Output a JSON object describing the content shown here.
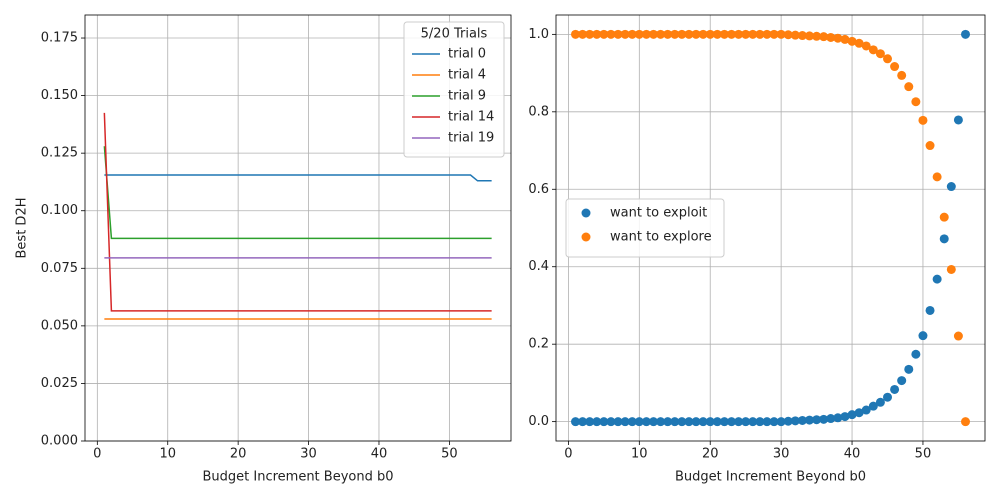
{
  "chart_data": [
    {
      "type": "line",
      "y_label": "Best D2H",
      "x_label": "Budget Increment Beyond b0",
      "legend_title": "5/20 Trials",
      "legend": "upper right",
      "grid": true,
      "x": [
        1,
        2,
        3,
        4,
        5,
        6,
        7,
        8,
        9,
        10,
        11,
        12,
        13,
        14,
        15,
        16,
        17,
        18,
        19,
        20,
        21,
        22,
        23,
        24,
        25,
        26,
        27,
        28,
        29,
        30,
        31,
        32,
        33,
        34,
        35,
        36,
        37,
        38,
        39,
        40,
        41,
        42,
        43,
        44,
        45,
        46,
        47,
        48,
        49,
        50,
        51,
        52,
        53,
        54,
        55,
        56
      ],
      "xlim": [
        -1.75,
        58.75
      ],
      "xticks": [
        0,
        10,
        20,
        30,
        40,
        50
      ],
      "ylim": [
        0,
        0.185
      ],
      "yticks": [
        {
          "value": 0,
          "label": "0.000"
        },
        {
          "value": 0.025,
          "label": "0.025"
        },
        {
          "value": 0.05,
          "label": "0.050"
        },
        {
          "value": 0.075,
          "label": "0.075"
        },
        {
          "value": 0.1,
          "label": "0.100"
        },
        {
          "value": 0.125,
          "label": "0.125"
        },
        {
          "value": 0.15,
          "label": "0.150"
        },
        {
          "value": 0.175,
          "label": "0.175"
        }
      ],
      "series": [
        {
          "name": "trial 0",
          "color": "#1f77b4",
          "values": [
            0.1155,
            0.1155,
            0.1155,
            0.1155,
            0.1155,
            0.1155,
            0.1155,
            0.1155,
            0.1155,
            0.1155,
            0.1155,
            0.1155,
            0.1155,
            0.1155,
            0.1155,
            0.1155,
            0.1155,
            0.1155,
            0.1155,
            0.1155,
            0.1155,
            0.1155,
            0.1155,
            0.1155,
            0.1155,
            0.1155,
            0.1155,
            0.1155,
            0.1155,
            0.1155,
            0.1155,
            0.1155,
            0.1155,
            0.1155,
            0.1155,
            0.1155,
            0.1155,
            0.1155,
            0.1155,
            0.1155,
            0.1155,
            0.1155,
            0.1155,
            0.1155,
            0.1155,
            0.1155,
            0.1155,
            0.1155,
            0.1155,
            0.1155,
            0.1155,
            0.1155,
            0.1155,
            0.113,
            0.113,
            0.113
          ]
        },
        {
          "name": "trial 4",
          "color": "#ff7f0e",
          "values": [
            0.053,
            0.053,
            0.053,
            0.053,
            0.053,
            0.053,
            0.053,
            0.053,
            0.053,
            0.053,
            0.053,
            0.053,
            0.053,
            0.053,
            0.053,
            0.053,
            0.053,
            0.053,
            0.053,
            0.053,
            0.053,
            0.053,
            0.053,
            0.053,
            0.053,
            0.053,
            0.053,
            0.053,
            0.053,
            0.053,
            0.053,
            0.053,
            0.053,
            0.053,
            0.053,
            0.053,
            0.053,
            0.053,
            0.053,
            0.053,
            0.053,
            0.053,
            0.053,
            0.053,
            0.053,
            0.053,
            0.053,
            0.053,
            0.053,
            0.053,
            0.053,
            0.053,
            0.053,
            0.053,
            0.053,
            0.053
          ]
        },
        {
          "name": "trial 9",
          "color": "#2ca02c",
          "values": [
            0.128,
            0.088,
            0.088,
            0.088,
            0.088,
            0.088,
            0.088,
            0.088,
            0.088,
            0.088,
            0.088,
            0.088,
            0.088,
            0.088,
            0.088,
            0.088,
            0.088,
            0.088,
            0.088,
            0.088,
            0.088,
            0.088,
            0.088,
            0.088,
            0.088,
            0.088,
            0.088,
            0.088,
            0.088,
            0.088,
            0.088,
            0.088,
            0.088,
            0.088,
            0.088,
            0.088,
            0.088,
            0.088,
            0.088,
            0.088,
            0.088,
            0.088,
            0.088,
            0.088,
            0.088,
            0.088,
            0.088,
            0.088,
            0.088,
            0.088,
            0.088,
            0.088,
            0.088,
            0.088,
            0.088,
            0.088
          ]
        },
        {
          "name": "trial 14",
          "color": "#d62728",
          "values": [
            0.1425,
            0.0565,
            0.0565,
            0.0565,
            0.0565,
            0.0565,
            0.0565,
            0.0565,
            0.0565,
            0.0565,
            0.0565,
            0.0565,
            0.0565,
            0.0565,
            0.0565,
            0.0565,
            0.0565,
            0.0565,
            0.0565,
            0.0565,
            0.0565,
            0.0565,
            0.0565,
            0.0565,
            0.0565,
            0.0565,
            0.0565,
            0.0565,
            0.0565,
            0.0565,
            0.0565,
            0.0565,
            0.0565,
            0.0565,
            0.0565,
            0.0565,
            0.0565,
            0.0565,
            0.0565,
            0.0565,
            0.0565,
            0.0565,
            0.0565,
            0.0565,
            0.0565,
            0.0565,
            0.0565,
            0.0565,
            0.0565,
            0.0565,
            0.0565,
            0.0565,
            0.0565,
            0.0565,
            0.0565,
            0.0565
          ]
        },
        {
          "name": "trial 19",
          "color": "#9467bd",
          "values": [
            0.0795,
            0.0795,
            0.0795,
            0.0795,
            0.0795,
            0.0795,
            0.0795,
            0.0795,
            0.0795,
            0.0795,
            0.0795,
            0.0795,
            0.0795,
            0.0795,
            0.0795,
            0.0795,
            0.0795,
            0.0795,
            0.0795,
            0.0795,
            0.0795,
            0.0795,
            0.0795,
            0.0795,
            0.0795,
            0.0795,
            0.0795,
            0.0795,
            0.0795,
            0.0795,
            0.0795,
            0.0795,
            0.0795,
            0.0795,
            0.0795,
            0.0795,
            0.0795,
            0.0795,
            0.0795,
            0.0795,
            0.0795,
            0.0795,
            0.0795,
            0.0795,
            0.0795,
            0.0795,
            0.0795,
            0.0795,
            0.0795,
            0.0795,
            0.0795,
            0.0795,
            0.0795,
            0.0795,
            0.0795,
            0.0795
          ]
        }
      ]
    },
    {
      "type": "scatter",
      "x_label": "Budget Increment Beyond b0",
      "legend": "center left",
      "grid": true,
      "x": [
        1,
        2,
        3,
        4,
        5,
        6,
        7,
        8,
        9,
        10,
        11,
        12,
        13,
        14,
        15,
        16,
        17,
        18,
        19,
        20,
        21,
        22,
        23,
        24,
        25,
        26,
        27,
        28,
        29,
        30,
        31,
        32,
        33,
        34,
        35,
        36,
        37,
        38,
        39,
        40,
        41,
        42,
        43,
        44,
        45,
        46,
        47,
        48,
        49,
        50,
        51,
        52,
        53,
        54,
        55,
        56
      ],
      "xlim": [
        -1.75,
        58.75
      ],
      "xticks": [
        0,
        10,
        20,
        30,
        40,
        50
      ],
      "ylim": [
        -0.05,
        1.05
      ],
      "yticks": [
        {
          "value": 0,
          "label": "0.0"
        },
        {
          "value": 0.2,
          "label": "0.2"
        },
        {
          "value": 0.4,
          "label": "0.4"
        },
        {
          "value": 0.6,
          "label": "0.6"
        },
        {
          "value": 0.8,
          "label": "0.8"
        },
        {
          "value": 1,
          "label": "1.0"
        }
      ],
      "series": [
        {
          "name": "want to exploit",
          "color": "#1f77b4",
          "values": [
            0,
            0,
            0,
            0,
            0,
            0,
            0,
            0,
            0,
            0,
            0,
            0,
            0,
            0,
            0,
            0,
            0,
            0,
            0,
            0,
            0,
            0,
            0,
            0,
            0,
            0,
            0,
            0,
            0,
            0,
            0.001,
            0.002,
            0.003,
            0.004,
            0.005,
            0.006,
            0.008,
            0.01,
            0.013,
            0.018,
            0.023,
            0.03,
            0.04,
            0.05,
            0.063,
            0.083,
            0.106,
            0.135,
            0.174,
            0.222,
            0.287,
            0.368,
            0.472,
            0.607,
            0.779,
            1.0
          ]
        },
        {
          "name": "want to explore",
          "color": "#ff7f0e",
          "values": [
            1,
            1,
            1,
            1,
            1,
            1,
            1,
            1,
            1,
            1,
            1,
            1,
            1,
            1,
            1,
            1,
            1,
            1,
            1,
            1,
            1,
            1,
            1,
            1,
            1,
            1,
            1,
            1,
            1,
            1,
            0.999,
            0.998,
            0.997,
            0.996,
            0.995,
            0.994,
            0.992,
            0.99,
            0.987,
            0.982,
            0.977,
            0.97,
            0.96,
            0.95,
            0.937,
            0.917,
            0.894,
            0.865,
            0.826,
            0.778,
            0.713,
            0.632,
            0.528,
            0.393,
            0.221,
            0
          ]
        }
      ]
    }
  ]
}
